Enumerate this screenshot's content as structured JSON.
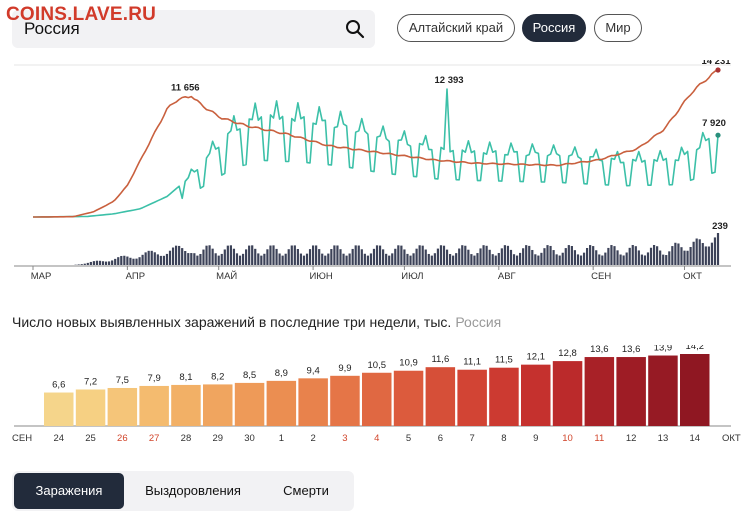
{
  "watermark": "COINS.LAVE.RU",
  "search": {
    "value": "Россия"
  },
  "region_chips": [
    {
      "label": "Алтайский край",
      "active": false
    },
    {
      "label": "Россия",
      "active": true
    },
    {
      "label": "Мир",
      "active": false
    }
  ],
  "colors": {
    "infections_line": "#c9603e",
    "recoveries_line": "#3cc0a8",
    "deaths_bars": "#3c4258",
    "active_chip": "#222b3b"
  },
  "chart_data": [
    {
      "type": "line",
      "x_labels": [
        "МАР",
        "АПР",
        "МАЙ",
        "ИЮН",
        "ИЮЛ",
        "АВГ",
        "СЕН",
        "ОКТ"
      ],
      "series": [
        {
          "key": "infections",
          "annotations": [
            "11 656",
            "14 231"
          ],
          "peak": 11656,
          "last": 14231
        },
        {
          "key": "recoveries",
          "annotations": [
            "12 393",
            "7 920"
          ],
          "peak": 12393,
          "last": 7920
        },
        {
          "key": "deaths",
          "annotations": [
            "239"
          ],
          "last": 239
        }
      ]
    },
    {
      "type": "bar",
      "title": "Число новых выявленных заражений в последние три недели, тыс.",
      "region": "Россия",
      "categories": [
        "24",
        "25",
        "26",
        "27",
        "28",
        "29",
        "30",
        "1",
        "2",
        "3",
        "4",
        "5",
        "6",
        "7",
        "8",
        "9",
        "10",
        "11",
        "12",
        "13",
        "14"
      ],
      "weekend_categories": [
        "26",
        "27",
        "3",
        "4",
        "10",
        "11"
      ],
      "values": [
        6.6,
        7.2,
        7.5,
        7.9,
        8.1,
        8.2,
        8.5,
        8.9,
        9.4,
        9.9,
        10.5,
        10.9,
        11.6,
        11.1,
        11.5,
        12.1,
        12.8,
        13.6,
        13.6,
        13.9,
        14.2
      ],
      "value_labels": [
        "6,6",
        "7,2",
        "7,5",
        "7,9",
        "8,1",
        "8,2",
        "8,5",
        "8,9",
        "9,4",
        "9,9",
        "10,5",
        "10,9",
        "11,6",
        "11,1",
        "11,5",
        "12,1",
        "12,8",
        "13,6",
        "13,6",
        "13,9",
        "14,2"
      ],
      "month_start": "СЕН",
      "month_end": "ОКТ"
    }
  ],
  "tabs": [
    {
      "label": "Заражения",
      "active": true
    },
    {
      "label": "Выздоровления",
      "active": false
    },
    {
      "label": "Смерти",
      "active": false
    }
  ]
}
